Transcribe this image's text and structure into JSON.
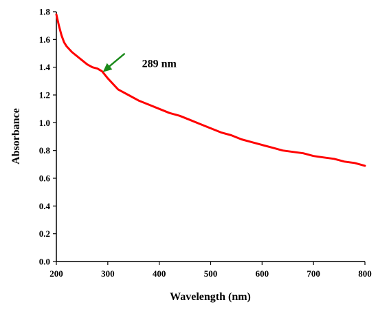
{
  "chart_data": {
    "type": "line",
    "title": "",
    "xlabel": "Wavelength (nm)",
    "ylabel": "Absorbance",
    "xlim": [
      200,
      800
    ],
    "ylim": [
      0.0,
      1.8
    ],
    "x_ticks": [
      200,
      300,
      400,
      500,
      600,
      700,
      800
    ],
    "x_tick_labels": [
      "200",
      "300",
      "400",
      "500",
      "600",
      "700",
      "800"
    ],
    "y_ticks": [
      0.0,
      0.2,
      0.4,
      0.6,
      0.8,
      1.0,
      1.2,
      1.4,
      1.6,
      1.8
    ],
    "y_tick_labels": [
      "0.0",
      "0.2",
      "0.4",
      "0.6",
      "0.8",
      "1.0",
      "1.2",
      "1.4",
      "1.6",
      "1.8"
    ],
    "grid": false,
    "legend": "none",
    "series": [
      {
        "color": "#ff0000",
        "x": [
          200,
          205,
          210,
          215,
          220,
          230,
          240,
          250,
          260,
          270,
          280,
          289,
          300,
          310,
          320,
          340,
          360,
          380,
          400,
          420,
          440,
          460,
          480,
          500,
          520,
          540,
          560,
          580,
          600,
          620,
          640,
          660,
          680,
          700,
          720,
          740,
          760,
          780,
          800
        ],
        "y": [
          1.78,
          1.7,
          1.63,
          1.58,
          1.55,
          1.51,
          1.48,
          1.45,
          1.42,
          1.4,
          1.39,
          1.37,
          1.32,
          1.28,
          1.24,
          1.2,
          1.16,
          1.13,
          1.1,
          1.07,
          1.05,
          1.02,
          0.99,
          0.96,
          0.93,
          0.91,
          0.88,
          0.86,
          0.84,
          0.82,
          0.8,
          0.79,
          0.78,
          0.76,
          0.75,
          0.74,
          0.72,
          0.71,
          0.69
        ]
      }
    ],
    "annotations": [
      {
        "text": "289 nm",
        "x": 289,
        "y": 1.37,
        "arrow_color": "#1a8a1a"
      }
    ]
  }
}
